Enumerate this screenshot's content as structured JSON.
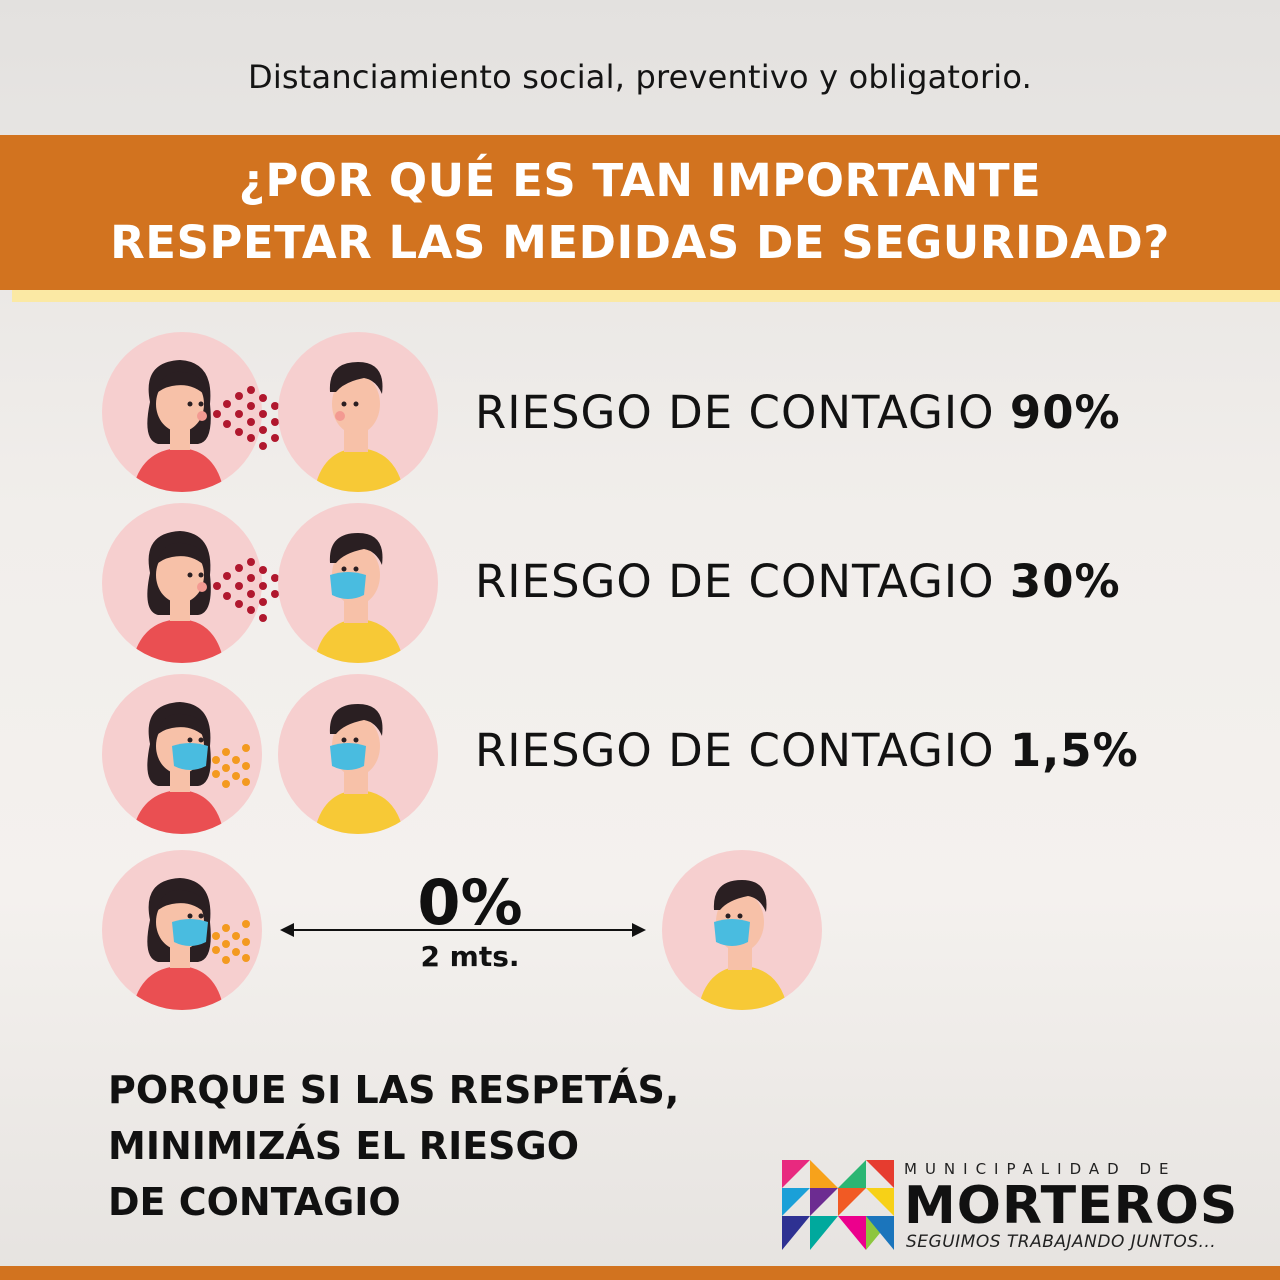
{
  "header": {
    "subtitle": "Distanciamiento social, preventivo y obligatorio.",
    "title_line1": "¿POR QUÉ ES TAN IMPORTANTE",
    "title_line2": "RESPETAR LAS MEDIDAS DE SEGURIDAD?"
  },
  "rows": [
    {
      "label": "RIESGO DE CONTAGIO",
      "value": "90%"
    },
    {
      "label": "RIESGO DE CONTAGIO",
      "value": "30%"
    },
    {
      "label": "RIESGO DE CONTAGIO",
      "value": "1,5%"
    }
  ],
  "distance": {
    "value": "0%",
    "label": "2 mts."
  },
  "closing": {
    "line1": "PORQUE SI LAS RESPETÁS,",
    "line2": "MINIMIZÁS EL RIESGO",
    "line3": "DE CONTAGIO"
  },
  "logo": {
    "small": "MUNICIPALIDAD DE",
    "name": "MORTEROS",
    "slogan": "SEGUIMOS TRABAJANDO JUNTOS..."
  },
  "colors": {
    "banner": "#d2731f",
    "accent_line": "#fbe9a4",
    "circle": "#f6cfcf",
    "woman_shirt": "#ea4f52",
    "man_shirt": "#f7c936",
    "mask": "#49bce0",
    "droplets_unmasked": "#b0182e",
    "droplets_masked": "#f39a1f"
  },
  "icons": [
    "woman-icon",
    "man-icon",
    "face-mask-icon",
    "droplets-icon",
    "double-arrow-icon",
    "morteros-logo-icon"
  ]
}
